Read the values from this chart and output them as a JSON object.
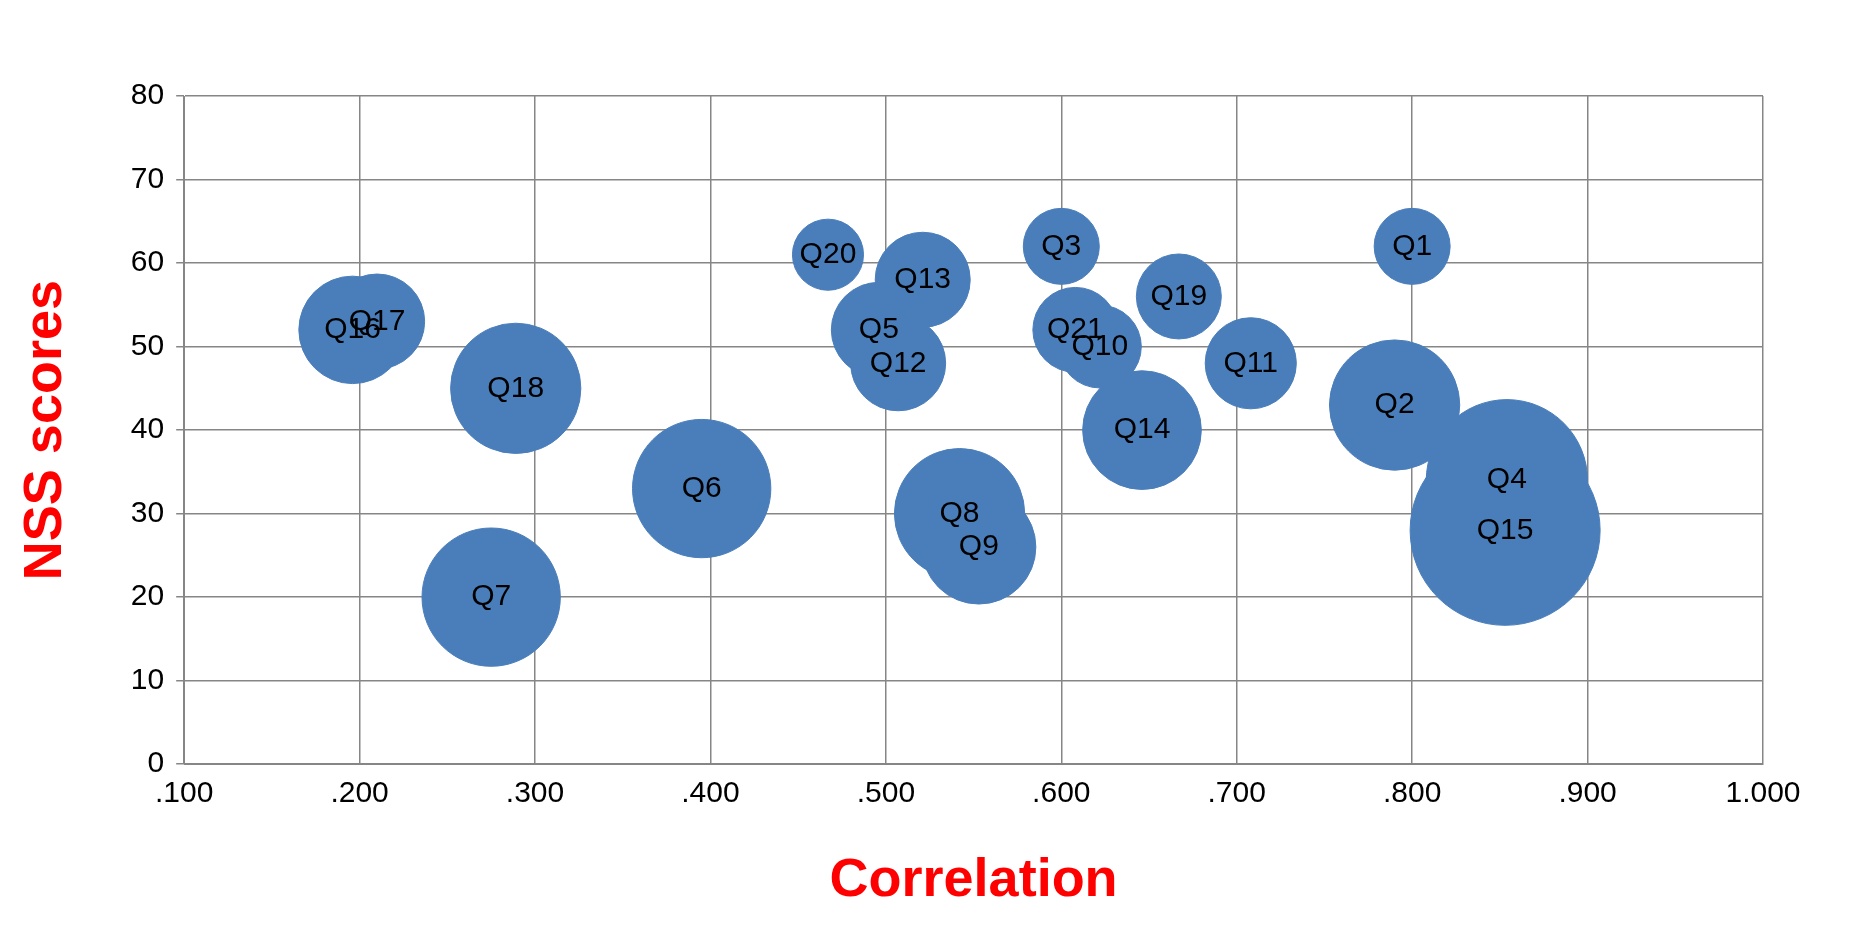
{
  "chart_data": {
    "type": "bubble",
    "xlabel": "Correlation",
    "ylabel": "NSS scores",
    "xlim": [
      0.1,
      1.0
    ],
    "xticks": [
      {
        "value": 0.1,
        "label": ".100"
      },
      {
        "value": 0.2,
        "label": ".200"
      },
      {
        "value": 0.3,
        "label": ".300"
      },
      {
        "value": 0.4,
        "label": ".400"
      },
      {
        "value": 0.5,
        "label": ".500"
      },
      {
        "value": 0.6,
        "label": ".600"
      },
      {
        "value": 0.7,
        "label": ".700"
      },
      {
        "value": 0.8,
        "label": ".800"
      },
      {
        "value": 0.9,
        "label": ".900"
      },
      {
        "value": 1.0,
        "label": "1.000"
      }
    ],
    "ylim": [
      0,
      80
    ],
    "yticks": [
      0,
      10,
      20,
      30,
      40,
      50,
      60,
      70,
      80
    ],
    "grid": true,
    "legend": false,
    "series": [
      {
        "name": "Q1",
        "color": "#4a7ebb",
        "x": [
          0.8
        ],
        "values": [
          62
        ],
        "sizes": [
          0.16
        ]
      },
      {
        "name": "Q2",
        "color": "#4a7ebb",
        "x": [
          0.79
        ],
        "values": [
          43
        ],
        "sizes": [
          0.47
        ]
      },
      {
        "name": "Q3",
        "color": "#4a7ebb",
        "x": [
          0.6
        ],
        "values": [
          62
        ],
        "sizes": [
          0.16
        ]
      },
      {
        "name": "Q4",
        "color": "#4a7ebb",
        "x": [
          0.854
        ],
        "values": [
          34
        ],
        "sizes": [
          0.72
        ]
      },
      {
        "name": "Q5",
        "color": "#4a7ebb",
        "x": [
          0.496
        ],
        "values": [
          52
        ],
        "sizes": [
          0.25
        ]
      },
      {
        "name": "Q6",
        "color": "#4a7ebb",
        "x": [
          0.395
        ],
        "values": [
          33
        ],
        "sizes": [
          0.53
        ]
      },
      {
        "name": "Q7",
        "color": "#4a7ebb",
        "x": [
          0.275
        ],
        "values": [
          20
        ],
        "sizes": [
          0.53
        ]
      },
      {
        "name": "Q8",
        "color": "#4a7ebb",
        "x": [
          0.542
        ],
        "values": [
          30
        ],
        "sizes": [
          0.47
        ]
      },
      {
        "name": "Q9",
        "color": "#4a7ebb",
        "x": [
          0.553
        ],
        "values": [
          26
        ],
        "sizes": [
          0.36
        ]
      },
      {
        "name": "Q10",
        "color": "#4a7ebb",
        "x": [
          0.622
        ],
        "values": [
          50
        ],
        "sizes": [
          0.19
        ]
      },
      {
        "name": "Q11",
        "color": "#4a7ebb",
        "x": [
          0.708
        ],
        "values": [
          48
        ],
        "sizes": [
          0.23
        ]
      },
      {
        "name": "Q12",
        "color": "#4a7ebb",
        "x": [
          0.507
        ],
        "values": [
          48
        ],
        "sizes": [
          0.25
        ]
      },
      {
        "name": "Q13",
        "color": "#4a7ebb",
        "x": [
          0.521
        ],
        "values": [
          58
        ],
        "sizes": [
          0.25
        ]
      },
      {
        "name": "Q14",
        "color": "#4a7ebb",
        "x": [
          0.646
        ],
        "values": [
          40
        ],
        "sizes": [
          0.39
        ]
      },
      {
        "name": "Q15",
        "color": "#4a7ebb",
        "x": [
          0.853
        ],
        "values": [
          28
        ],
        "sizes": [
          1
        ]
      },
      {
        "name": "Q16",
        "color": "#4a7ebb",
        "x": [
          0.196
        ],
        "values": [
          52
        ],
        "sizes": [
          0.32
        ]
      },
      {
        "name": "Q17",
        "color": "#4a7ebb",
        "x": [
          0.21
        ],
        "values": [
          53
        ],
        "sizes": [
          0.25
        ]
      },
      {
        "name": "Q18",
        "color": "#4a7ebb",
        "x": [
          0.289
        ],
        "values": [
          45
        ],
        "sizes": [
          0.47
        ]
      },
      {
        "name": "Q19",
        "color": "#4a7ebb",
        "x": [
          0.667
        ],
        "values": [
          56
        ],
        "sizes": [
          0.2
        ]
      },
      {
        "name": "Q20",
        "color": "#4a7ebb",
        "x": [
          0.467
        ],
        "values": [
          61
        ],
        "sizes": [
          0.14
        ]
      },
      {
        "name": "Q21",
        "color": "#4a7ebb",
        "x": [
          0.608
        ],
        "values": [
          52
        ],
        "sizes": [
          0.2
        ]
      }
    ]
  }
}
